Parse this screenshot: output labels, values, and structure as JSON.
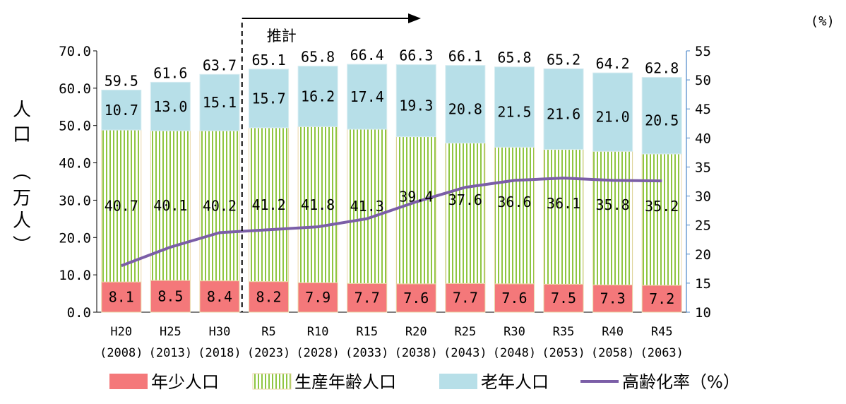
{
  "chart_data": {
    "type": "bar",
    "stacked": true,
    "categories": [
      "H20",
      "H25",
      "H30",
      "R5",
      "R10",
      "R15",
      "R20",
      "R25",
      "R30",
      "R35",
      "R40",
      "R45"
    ],
    "category_years": [
      "(2008)",
      "(2013)",
      "(2018)",
      "(2023)",
      "(2028)",
      "(2033)",
      "(2038)",
      "(2043)",
      "(2048)",
      "(2053)",
      "(2058)",
      "(2063)"
    ],
    "series": [
      {
        "name": "年少人口",
        "values": [
          8.1,
          8.5,
          8.4,
          8.2,
          7.9,
          7.7,
          7.6,
          7.7,
          7.6,
          7.5,
          7.3,
          7.2
        ],
        "color": "#f4787a"
      },
      {
        "name": "生産年齢人口",
        "values": [
          40.7,
          40.1,
          40.2,
          41.2,
          41.8,
          41.3,
          39.4,
          37.6,
          36.6,
          36.1,
          35.8,
          35.2
        ],
        "color": "#8fc641",
        "pattern": "vertical-stripes"
      },
      {
        "name": "老年人口",
        "values": [
          10.7,
          13.0,
          15.1,
          15.7,
          16.2,
          17.4,
          19.3,
          20.8,
          21.5,
          21.6,
          21.0,
          20.5
        ],
        "color": "#b7dfe8"
      },
      {
        "name": "高齢化率（%）",
        "type": "line",
        "axis": "right",
        "values": [
          18.0,
          21.2,
          23.7,
          24.2,
          24.7,
          26.1,
          29.0,
          31.5,
          32.7,
          33.1,
          32.7,
          32.6
        ],
        "color": "#7b5ea7"
      }
    ],
    "totals": [
      "59.5",
      "61.6",
      "63.7",
      "65.1",
      "65.8",
      "66.4",
      "66.3",
      "66.1",
      "65.8",
      "65.2",
      "64.2",
      "62.8"
    ],
    "left_ticks": [
      "70.0",
      "60.0",
      "50.0",
      "40.0",
      "30.0",
      "20.0",
      "10.0",
      "0.0"
    ],
    "right_ticks": [
      "55",
      "50",
      "45",
      "40",
      "35",
      "30",
      "25",
      "20",
      "15",
      "10"
    ],
    "ylim": [
      0,
      70
    ],
    "y2lim": [
      10,
      55
    ],
    "ylabel_chars": [
      "人",
      "口",
      "︵",
      "万",
      "人",
      "︶"
    ],
    "y2label": "(%)",
    "projection_label": "推計",
    "legend_position": "bottom",
    "grid": false
  },
  "colors": {
    "axis": "#4a86c8",
    "bar_edge": "#ead7a8"
  }
}
